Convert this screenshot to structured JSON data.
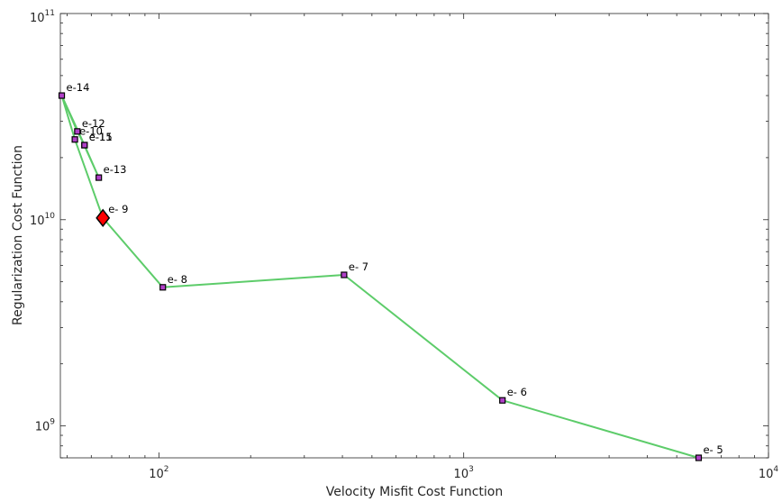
{
  "chart_data": {
    "type": "line",
    "title": "",
    "xlabel": "Velocity Misfit Cost Function",
    "ylabel": "Regularization Cost Function",
    "xscale": "log",
    "yscale": "log",
    "xlim": [
      47.5,
      10000
    ],
    "ylim": [
      700000000,
      100000000000
    ],
    "x_ticks": [
      {
        "base": "10",
        "exp": "2",
        "value": 100
      },
      {
        "base": "10",
        "exp": "3",
        "value": 1000
      },
      {
        "base": "10",
        "exp": "4",
        "value": 10000
      }
    ],
    "y_ticks": [
      {
        "base": "10",
        "exp": "9",
        "value": 1000000000
      },
      {
        "base": "10",
        "exp": "10",
        "value": 10000000000
      },
      {
        "base": "10",
        "exp": "11",
        "value": 100000000000
      }
    ],
    "grid": false,
    "line_color": "#5dcc6a",
    "marker_edge_color": "#000000",
    "marker_fill_color": "#b041c8",
    "highlight_color": "#ff0000",
    "highlight_label": "e- 9",
    "points": [
      {
        "label": "e- 5",
        "x": 5900,
        "y": 700000000
      },
      {
        "label": "e- 6",
        "x": 1340,
        "y": 1330000000
      },
      {
        "label": "e- 7",
        "x": 405,
        "y": 5400000000
      },
      {
        "label": "e- 8",
        "x": 103,
        "y": 4700000000
      },
      {
        "label": "e- 9",
        "x": 65.5,
        "y": 10200000000
      },
      {
        "label": "e-10",
        "x": 53,
        "y": 24500000000
      },
      {
        "label": "e-11",
        "x": 57,
        "y": 23000000000
      },
      {
        "label": "e-12",
        "x": 54,
        "y": 26800000000
      },
      {
        "label": "e-13",
        "x": 63.5,
        "y": 16000000000
      },
      {
        "label": "e-14",
        "x": 48,
        "y": 40000000000
      },
      {
        "label": "e-15",
        "x": 57,
        "y": 23000000000
      }
    ],
    "path_order": [
      "e- 5",
      "e- 6",
      "e- 7",
      "e- 8",
      "e- 9",
      "e-10",
      "e-14",
      "e-12",
      "e-15",
      "e-13",
      "e-14",
      "e-11"
    ]
  }
}
